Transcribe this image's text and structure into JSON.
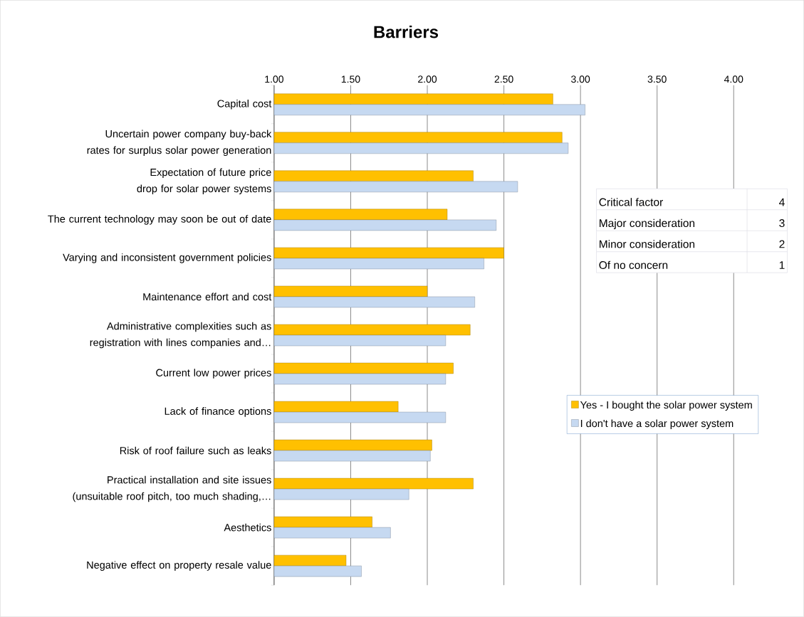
{
  "chart_data": {
    "type": "bar",
    "orientation": "horizontal",
    "title": "Barriers",
    "categories": [
      "Capital cost",
      "Uncertain power company buy-back rates for surplus solar power generation",
      "Expectation of future price drop for solar power systems",
      "The current technology may soon be out of date",
      "Varying and inconsistent government policies",
      "Maintenance effort and cost",
      "Administrative complexities such as registration with lines companies and…",
      "Current low power prices",
      "Lack of finance options",
      "Risk of roof failure such as leaks",
      "Practical installation and site issues (unsuitable roof pitch, too much shading,…",
      "Aesthetics",
      "Negative effect on property resale value"
    ],
    "series": [
      {
        "name": "Yes - I bought the solar power system",
        "color": "#ffc000",
        "values": [
          2.82,
          2.88,
          2.3,
          2.13,
          2.5,
          2.0,
          2.28,
          2.17,
          1.81,
          2.03,
          2.3,
          1.64,
          1.47
        ]
      },
      {
        "name": "I don't have a solar power system",
        "color": "#c6d9f1",
        "values": [
          3.03,
          2.92,
          2.59,
          2.45,
          2.37,
          2.31,
          2.12,
          2.12,
          2.12,
          2.02,
          1.88,
          1.76,
          1.57
        ]
      }
    ],
    "xlim": [
      1,
      4
    ],
    "xticks": [
      {
        "value": 1,
        "label": "1.00"
      },
      {
        "value": 1.5,
        "label": "1.50"
      },
      {
        "value": 2,
        "label": "2.00"
      },
      {
        "value": 2.5,
        "label": "2.50"
      },
      {
        "value": 3,
        "label": "3.00"
      },
      {
        "value": 3.5,
        "label": "3.50"
      },
      {
        "value": 4,
        "label": "4.00"
      }
    ],
    "grid": "x",
    "legend": "right",
    "annotations": [
      "Critical factor",
      "4",
      "Major consideration",
      "3",
      "Minor consideration",
      "2",
      "Of no concern",
      "1"
    ]
  }
}
